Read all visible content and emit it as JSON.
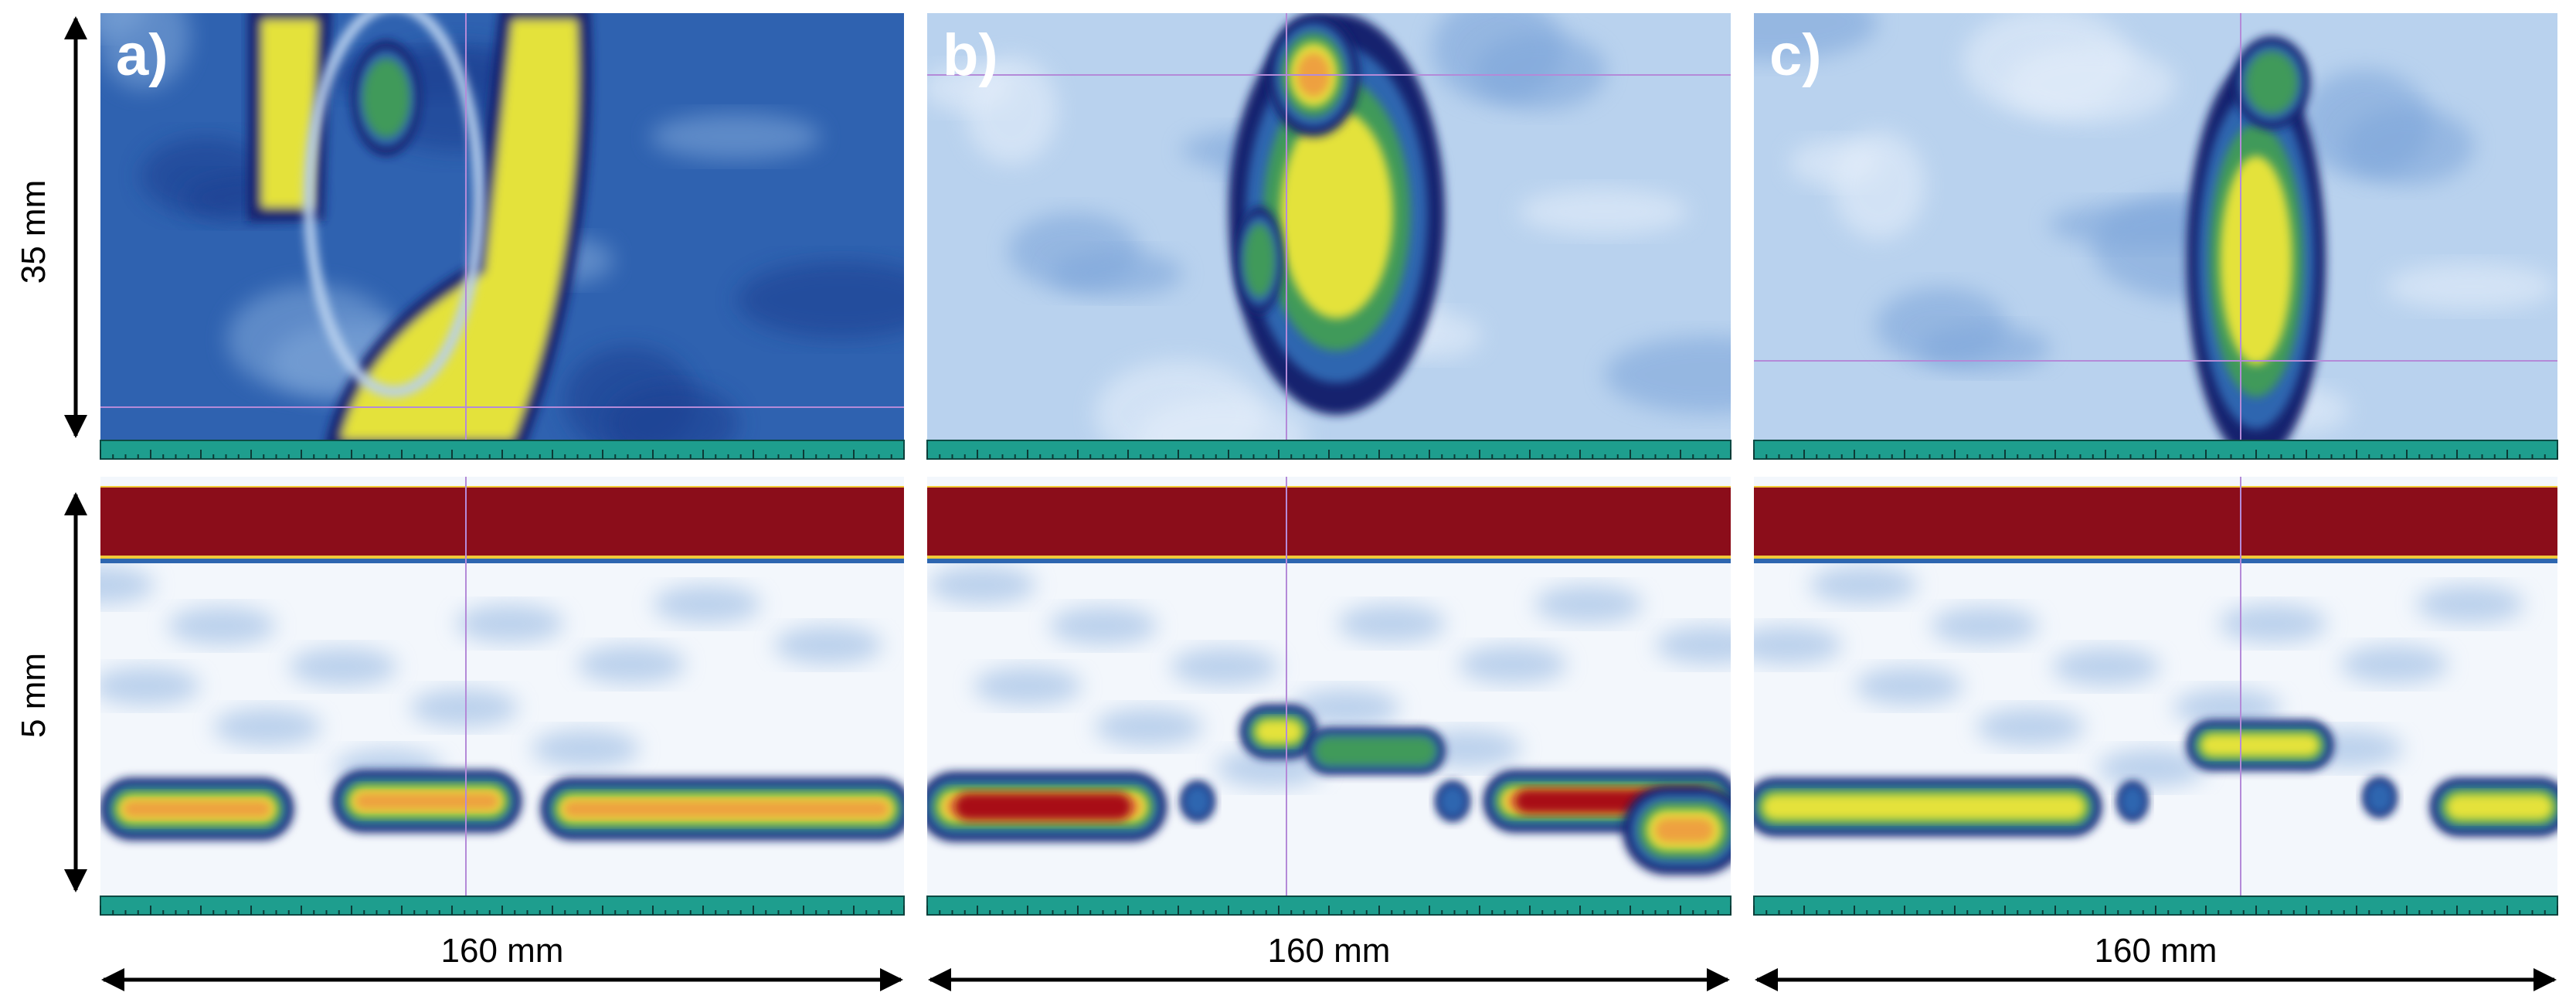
{
  "panels": [
    {
      "label": "a)",
      "width_label": "160 mm"
    },
    {
      "label": "b)",
      "width_label": "160 mm"
    },
    {
      "label": "c)",
      "width_label": "160 mm"
    }
  ],
  "top_height_label": "35 mm",
  "bottom_height_label": "5 mm"
}
